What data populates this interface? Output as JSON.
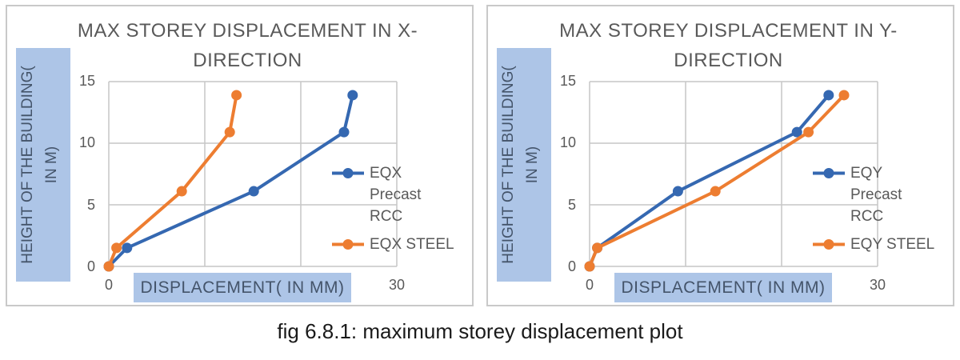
{
  "page": {
    "caption": "fig 6.8.1: maximum storey displacement plot"
  },
  "colors": {
    "grid": "#c6c6c6",
    "panel_border": "#c9c9c9",
    "axis_label_box_bg": "#adc5e7",
    "axis_label_box_text": "#44546a",
    "chart_text": "#595959",
    "series_blue": "#3568b1",
    "series_orange": "#ed7d31"
  },
  "chart_data": [
    {
      "type": "line",
      "title": "MAX STOREY DISPLACEMENT IN X-DIRECTION",
      "title_lines": [
        "MAX STOREY DISPLACEMENT IN X-",
        "DIRECTION"
      ],
      "xlabel": "DISPLACEMENT( IN MM)",
      "ylabel": "HEIGHT OF THE BUILDING( IN M)",
      "ylabel_lines": [
        "HEIGHT OF THE BUILDING(",
        "IN M)"
      ],
      "xlim": [
        0,
        30
      ],
      "ylim": [
        0,
        15
      ],
      "x_gridlines": [
        0,
        10,
        20,
        30
      ],
      "y_gridlines": [
        0,
        5,
        10,
        15
      ],
      "x_tick_labels": [
        "0",
        "30"
      ],
      "y_tick_labels": [
        "15",
        "10",
        "5",
        "0"
      ],
      "grid": true,
      "legend_position": "right-inside",
      "series": [
        {
          "name": "EQX Precast RCC",
          "color": "#3568b1",
          "x": [
            0,
            1.9,
            15.1,
            24.5,
            25.4
          ],
          "y": [
            0,
            1.5,
            6.1,
            10.9,
            13.9
          ]
        },
        {
          "name": "EQX STEEL",
          "color": "#ed7d31",
          "x": [
            0,
            0.8,
            7.6,
            12.6,
            13.3
          ],
          "y": [
            0,
            1.5,
            6.1,
            10.9,
            13.9
          ]
        }
      ]
    },
    {
      "type": "line",
      "title": "MAX STOREY DISPLACEMENT IN Y-DIRECTION",
      "title_lines": [
        "MAX STOREY DISPLACEMENT IN Y-",
        "DIRECTION"
      ],
      "xlabel": "DISPLACEMENT( IN MM)",
      "ylabel": "HEIGHT OF THE BUILDING( IN M)",
      "ylabel_lines": [
        "HEIGHT OF THE BUILDING(",
        "IN M)"
      ],
      "xlim": [
        0,
        30
      ],
      "ylim": [
        0,
        15
      ],
      "x_gridlines": [
        0,
        10,
        20,
        30
      ],
      "y_gridlines": [
        0,
        5,
        10,
        15
      ],
      "x_tick_labels": [
        "0",
        "30"
      ],
      "y_tick_labels": [
        "15",
        "10",
        "5",
        "0"
      ],
      "grid": true,
      "legend_position": "right-inside",
      "series": [
        {
          "name": "EQY Precast RCC",
          "color": "#3568b1",
          "x": [
            0,
            0.8,
            9.2,
            21.6,
            24.9
          ],
          "y": [
            0,
            1.5,
            6.1,
            10.9,
            13.9
          ]
        },
        {
          "name": "EQY STEEL",
          "color": "#ed7d31",
          "x": [
            0,
            0.8,
            13.1,
            22.8,
            26.5
          ],
          "y": [
            0,
            1.5,
            6.1,
            10.9,
            13.9
          ]
        }
      ]
    }
  ]
}
